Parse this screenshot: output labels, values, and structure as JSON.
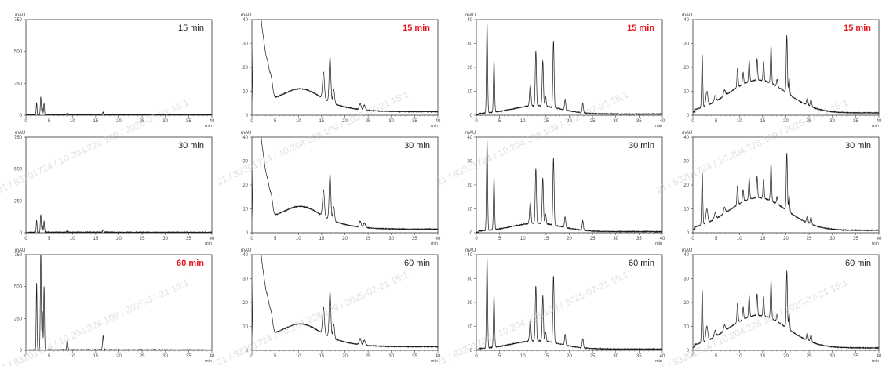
{
  "chart_data": {
    "type": "line",
    "grid_layout": {
      "rows": 3,
      "cols": 4
    },
    "y_unit": "mAU",
    "x_unit": "min",
    "x_ticks": [
      0,
      5,
      10,
      15,
      20,
      25,
      30,
      35,
      40
    ],
    "xlim": [
      0,
      40
    ],
    "highlight_color": "#e8141e",
    "label_color": "#222222",
    "watermark": "21 / 83201724 / 10.204.228.109 / 2025-07-21 15:1",
    "column_defs": [
      {
        "column": 1,
        "ylim": [
          0,
          750
        ],
        "y_ticks": [
          0,
          250,
          500,
          750
        ],
        "baseline": 3,
        "drift": 1.0,
        "peaks": [
          {
            "t": 2.3,
            "h": 95,
            "w": 0.09
          },
          {
            "t": 3.2,
            "h": 140,
            "w": 0.1
          },
          {
            "t": 3.55,
            "h": 55,
            "w": 0.08
          },
          {
            "t": 3.9,
            "h": 90,
            "w": 0.09
          },
          {
            "t": 8.9,
            "h": 14,
            "w": 0.12
          },
          {
            "t": 16.6,
            "h": 20,
            "w": 0.12
          }
        ]
      },
      {
        "column": 2,
        "ylim": [
          0,
          40
        ],
        "y_ticks": [
          0,
          10,
          20,
          30,
          40
        ],
        "baseline": 1.5,
        "drift": 6.0,
        "peaks": [
          {
            "t": 0.6,
            "h": 80,
            "w": 0.25
          },
          {
            "t": 1.3,
            "h": 40,
            "w": 0.35
          },
          {
            "t": 2.1,
            "h": 28,
            "w": 0.8
          },
          {
            "t": 3.5,
            "h": 8,
            "w": 0.4
          },
          {
            "t": 4.2,
            "h": 6,
            "w": 0.3
          },
          {
            "t": 10.5,
            "h": 5,
            "w": 3.5
          },
          {
            "t": 15.4,
            "h": 11,
            "w": 0.2
          },
          {
            "t": 16.8,
            "h": 19,
            "w": 0.18
          },
          {
            "t": 17.6,
            "h": 6,
            "w": 0.18
          },
          {
            "t": 23.3,
            "h": 2.5,
            "w": 0.2
          },
          {
            "t": 24.2,
            "h": 2,
            "w": 0.2
          }
        ]
      },
      {
        "column": 3,
        "ylim": [
          0,
          40
        ],
        "y_ticks": [
          0,
          10,
          20,
          30,
          40
        ],
        "baseline": 0.5,
        "drift": 0.5,
        "peaks": [
          {
            "t": 2.3,
            "h": 38,
            "w": 0.12
          },
          {
            "t": 3.8,
            "h": 22,
            "w": 0.12
          },
          {
            "t": 13.0,
            "h": 3,
            "w": 5.0
          },
          {
            "t": 11.6,
            "h": 9,
            "w": 0.15
          },
          {
            "t": 12.8,
            "h": 23,
            "w": 0.13
          },
          {
            "t": 14.3,
            "h": 19,
            "w": 0.13
          },
          {
            "t": 14.9,
            "h": 4,
            "w": 0.13
          },
          {
            "t": 16.6,
            "h": 28,
            "w": 0.13
          },
          {
            "t": 19.1,
            "h": 4.5,
            "w": 0.13
          },
          {
            "t": 22.9,
            "h": 4,
            "w": 0.13
          }
        ]
      },
      {
        "column": 4,
        "ylim": [
          0,
          40
        ],
        "y_ticks": [
          0,
          10,
          20,
          30,
          40
        ],
        "baseline": 1.0,
        "drift": 5.0,
        "peaks": [
          {
            "t": 2.0,
            "h": 22,
            "w": 0.12
          },
          {
            "t": 3.0,
            "h": 6,
            "w": 0.2
          },
          {
            "t": 15.0,
            "h": 9,
            "w": 6.0
          },
          {
            "t": 4.8,
            "h": 2.5,
            "w": 0.2
          },
          {
            "t": 6.8,
            "h": 2.5,
            "w": 0.2
          },
          {
            "t": 9.6,
            "h": 8,
            "w": 0.12
          },
          {
            "t": 10.8,
            "h": 5,
            "w": 0.12
          },
          {
            "t": 12.1,
            "h": 9,
            "w": 0.12
          },
          {
            "t": 13.8,
            "h": 9,
            "w": 0.12
          },
          {
            "t": 15.2,
            "h": 8,
            "w": 0.12
          },
          {
            "t": 16.8,
            "h": 16,
            "w": 0.12
          },
          {
            "t": 18.1,
            "h": 3,
            "w": 0.12
          },
          {
            "t": 20.2,
            "h": 24,
            "w": 0.12
          },
          {
            "t": 20.7,
            "h": 7,
            "w": 0.12
          },
          {
            "t": 24.6,
            "h": 3,
            "w": 0.15
          },
          {
            "t": 25.4,
            "h": 3,
            "w": 0.15
          }
        ]
      }
    ],
    "rows": [
      {
        "time_label": "15 min",
        "scale": [
          1.0,
          1.0,
          1.0,
          1.0
        ],
        "highlight": [
          false,
          true,
          true,
          true
        ]
      },
      {
        "time_label": "30 min",
        "scale": [
          1.0,
          1.0,
          1.0,
          1.0
        ],
        "highlight": [
          false,
          false,
          false,
          false
        ]
      },
      {
        "time_label": "60 min",
        "scale": [
          5.5,
          1.0,
          1.0,
          1.0
        ],
        "highlight": [
          true,
          false,
          false,
          false
        ]
      }
    ]
  }
}
